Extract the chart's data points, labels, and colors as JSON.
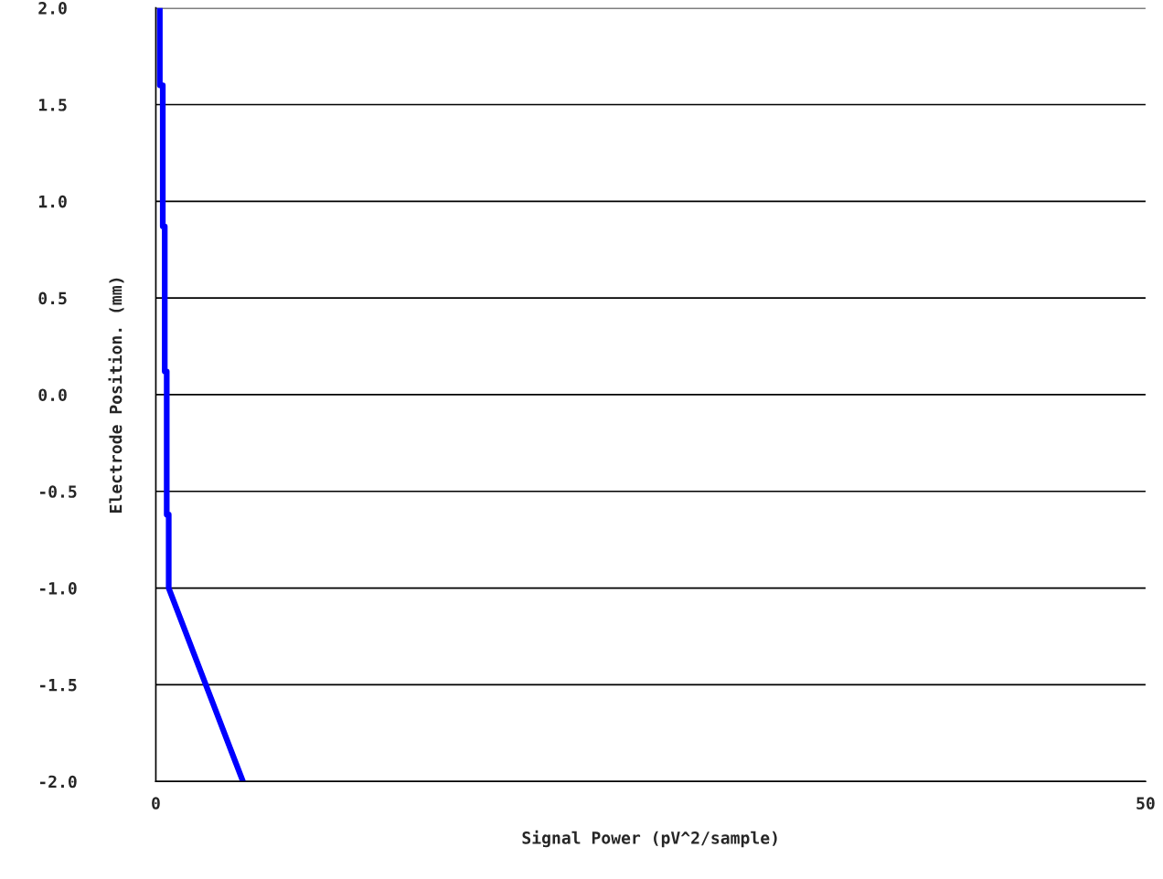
{
  "chart_data": {
    "type": "line",
    "xlabel": "Signal Power (pV^2/sample)",
    "ylabel": "Electrode Position. (mm)",
    "x": [
      0.2,
      0.2,
      0.35,
      0.35,
      0.45,
      0.45,
      0.55,
      0.55,
      0.65,
      0.65,
      4.4
    ],
    "series": [
      {
        "color": "#0000ff",
        "values": [
          2.0,
          1.6,
          1.6,
          0.87,
          0.87,
          0.12,
          0.12,
          -0.62,
          -0.62,
          -1.0,
          -2.0
        ]
      }
    ],
    "xlim": [
      0,
      50
    ],
    "xticks": [
      0,
      50
    ],
    "ylim": [
      -2.0,
      2.0
    ],
    "yticks": [
      {
        "value": 2.0,
        "label": "2.0"
      },
      {
        "value": 1.5,
        "label": "1.5"
      },
      {
        "value": 1.0,
        "label": "1.0"
      },
      {
        "value": 0.5,
        "label": "0.5"
      },
      {
        "value": 0.0,
        "label": "0.0"
      },
      {
        "value": -0.5,
        "label": "-0.5"
      },
      {
        "value": -1.0,
        "label": "-1.0"
      },
      {
        "value": -1.5,
        "label": "-1.5"
      },
      {
        "value": -2.0,
        "label": "-2.0"
      }
    ],
    "grid": "y",
    "marker": "none",
    "line_style": "solid"
  }
}
